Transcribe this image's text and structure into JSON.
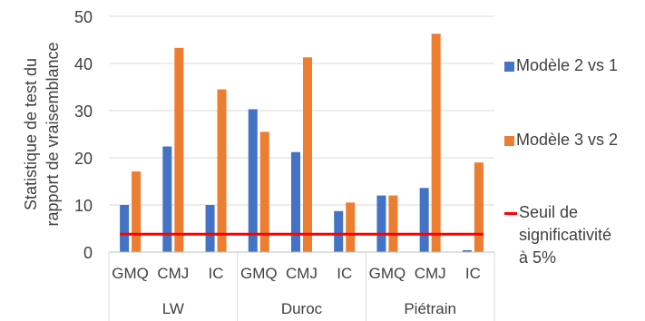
{
  "chart_data": {
    "type": "bar",
    "ylabel": "Statistique de test du rapport de vraisemblance",
    "ylabel_lines": [
      "Statistique de test du",
      "rapport de vraisemblance"
    ],
    "ylim": [
      0,
      50
    ],
    "yticks": [
      0,
      10,
      20,
      30,
      40,
      50
    ],
    "grid": true,
    "legend_position": "right",
    "groups": [
      "LW",
      "Duroc",
      "Piétrain"
    ],
    "categories": [
      "GMQ",
      "CMJ",
      "IC",
      "GMQ",
      "CMJ",
      "IC",
      "GMQ",
      "CMJ",
      "IC"
    ],
    "series": [
      {
        "name": "Modèle 2 vs 1",
        "color": "#4472C4",
        "values": [
          10.0,
          22.4,
          10.0,
          30.3,
          21.2,
          8.7,
          12.0,
          13.6,
          0.4
        ]
      },
      {
        "name": "Modèle 3 vs 2",
        "color": "#ED7D31",
        "values": [
          17.1,
          43.3,
          34.5,
          25.5,
          41.3,
          10.5,
          12.0,
          46.3,
          19.0
        ]
      }
    ],
    "threshold": {
      "name": "Seuil de significativité à 5%",
      "value": 3.8,
      "color": "#FF0000"
    }
  },
  "legend": {
    "items": [
      {
        "label": "Modèle 2 vs 1",
        "kind": "bar",
        "color": "#4472C4"
      },
      {
        "label": "Modèle 3 vs 2",
        "kind": "bar",
        "color": "#ED7D31"
      },
      {
        "label": "Seuil de\nsignificativité\nà 5%",
        "kind": "line",
        "color": "#FF0000"
      }
    ]
  }
}
